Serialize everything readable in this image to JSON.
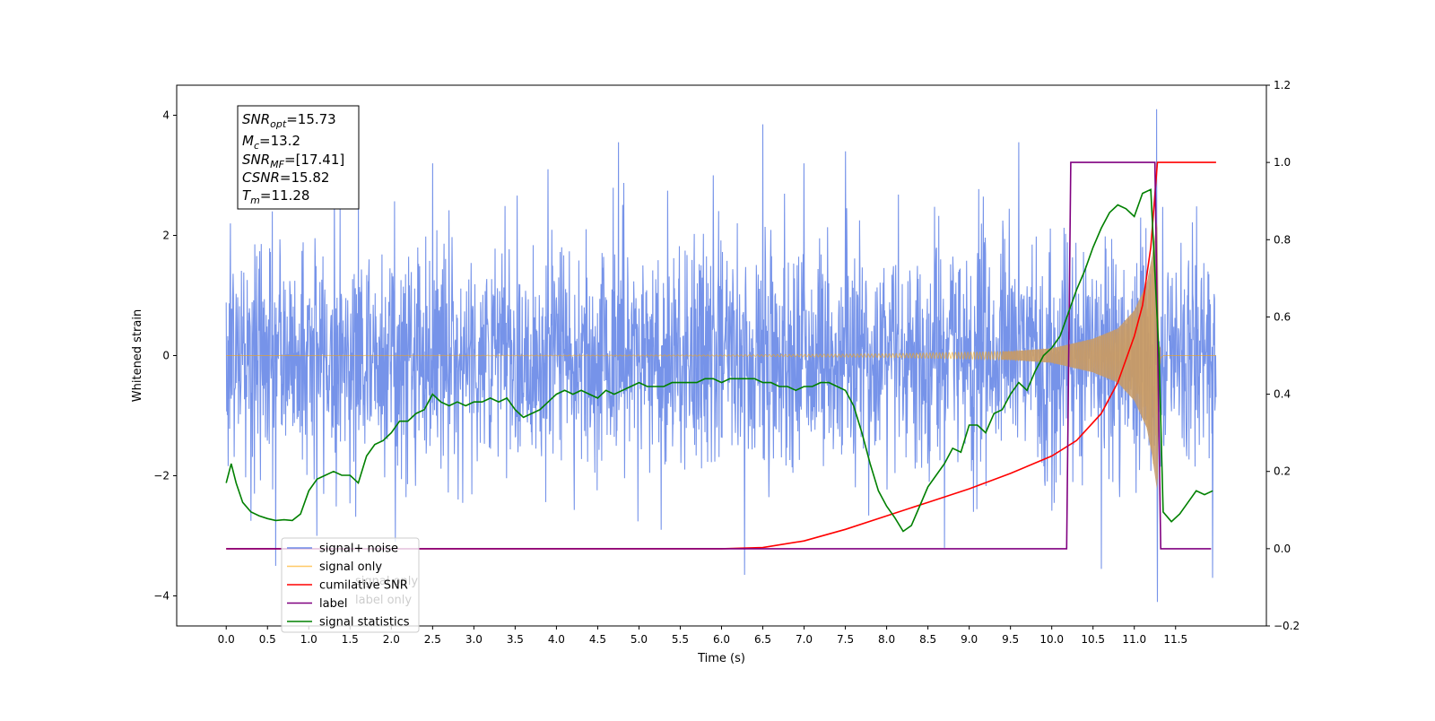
{
  "chart_data": {
    "type": "line",
    "xlabel": "Time (s)",
    "ylabel": "Whitened strain",
    "xlim": [
      -0.6,
      12.6
    ],
    "ylim": [
      -4.5,
      4.5
    ],
    "y2lim": [
      -0.2,
      1.2
    ],
    "x_ticks": [
      "0.0",
      "0.5",
      "1.0",
      "1.5",
      "2.0",
      "2.5",
      "3.0",
      "3.5",
      "4.0",
      "4.5",
      "5.0",
      "5.5",
      "6.0",
      "6.5",
      "7.0",
      "7.5",
      "8.0",
      "8.5",
      "9.0",
      "9.5",
      "10.0",
      "10.5",
      "11.0",
      "11.5"
    ],
    "y_ticks": [
      "4",
      "2",
      "0",
      "−2",
      "−4"
    ],
    "y2_ticks": [
      "1.2",
      "1.0",
      "0.8",
      "0.6",
      "0.4",
      "0.2",
      "0.0",
      "−0.2"
    ],
    "colors": {
      "noise": "#4169e1",
      "signal": "#ffa500",
      "csnr": "#ff0000",
      "label": "#800080",
      "stats": "#008000"
    },
    "annotation": {
      "snr_opt_base": "SNR",
      "snr_opt_sub": "opt",
      "snr_opt_value": "=15.73",
      "mc_base": "M",
      "mc_sub": "c",
      "mc_value": "=13.2",
      "snr_mf_base": "SNR",
      "snr_mf_sub": "MF",
      "snr_mf_value": "=[17.41]",
      "csnr_base": "CSNR",
      "csnr_value": "=15.82",
      "tm_base": "T",
      "tm_sub": "m",
      "tm_value": "=11.28"
    },
    "legend": {
      "placement": "lower-left",
      "entries": [
        "signal+ noise",
        "signal only",
        "cumilative SNR",
        "label",
        "signal statistics"
      ],
      "hidden_behind_legend": [
        "signal only",
        "label only"
      ]
    },
    "series": [
      {
        "name": "signal+ noise",
        "axis": "left",
        "kind": "noise",
        "x_range": [
          0.0,
          11.99
        ],
        "typical_band": [
          -1.6,
          1.6
        ],
        "spikes": [
          {
            "x": 0.05,
            "y": 2.2
          },
          {
            "x": 0.3,
            "y": -2.75
          },
          {
            "x": 0.6,
            "y": -3.5
          },
          {
            "x": 2.5,
            "y": 3.2
          },
          {
            "x": 1.1,
            "y": -3.0
          },
          {
            "x": 2.05,
            "y": -3.1
          },
          {
            "x": 4.75,
            "y": 3.55
          },
          {
            "x": 6.28,
            "y": -3.65
          },
          {
            "x": 6.5,
            "y": 3.85
          },
          {
            "x": 7.5,
            "y": 3.4
          },
          {
            "x": 8.7,
            "y": -3.2
          },
          {
            "x": 9.6,
            "y": 3.55
          },
          {
            "x": 10.6,
            "y": -3.55
          },
          {
            "x": 11.27,
            "y": 4.1
          },
          {
            "x": 11.28,
            "y": -4.1
          },
          {
            "x": 11.95,
            "y": -3.7
          },
          {
            "x": 7.0,
            "y": 3.2
          },
          {
            "x": 3.9,
            "y": 3.1
          },
          {
            "x": 1.6,
            "y": 2.6
          },
          {
            "x": 5.9,
            "y": 3.0
          },
          {
            "x": 9.05,
            "y": -2.6
          }
        ]
      },
      {
        "name": "signal only",
        "axis": "left",
        "kind": "chirp",
        "x_range": [
          0.0,
          11.99
        ],
        "merger_time": 11.28,
        "envelope_points": [
          [
            0.0,
            0.0
          ],
          [
            6.0,
            0.01
          ],
          [
            8.0,
            0.03
          ],
          [
            9.5,
            0.07
          ],
          [
            10.0,
            0.12
          ],
          [
            10.5,
            0.28
          ],
          [
            10.8,
            0.45
          ],
          [
            11.0,
            0.75
          ],
          [
            11.15,
            1.2
          ],
          [
            11.22,
            1.7
          ],
          [
            11.28,
            2.3
          ],
          [
            11.3,
            0.2
          ],
          [
            11.35,
            0.0
          ],
          [
            11.99,
            0.0
          ]
        ]
      },
      {
        "name": "cumilative SNR",
        "axis": "right",
        "points": [
          [
            0.0,
            0.0
          ],
          [
            6.0,
            0.0
          ],
          [
            6.5,
            0.003
          ],
          [
            7.0,
            0.02
          ],
          [
            7.5,
            0.05
          ],
          [
            8.0,
            0.085
          ],
          [
            8.5,
            0.12
          ],
          [
            9.0,
            0.155
          ],
          [
            9.5,
            0.195
          ],
          [
            10.0,
            0.24
          ],
          [
            10.3,
            0.28
          ],
          [
            10.6,
            0.35
          ],
          [
            10.8,
            0.43
          ],
          [
            11.0,
            0.55
          ],
          [
            11.1,
            0.63
          ],
          [
            11.2,
            0.78
          ],
          [
            11.28,
            1.0
          ],
          [
            11.99,
            1.0
          ]
        ]
      },
      {
        "name": "label",
        "axis": "right",
        "points": [
          [
            0.0,
            0.0
          ],
          [
            10.18,
            0.0
          ],
          [
            10.23,
            1.0
          ],
          [
            11.25,
            1.0
          ],
          [
            11.32,
            0.0
          ],
          [
            11.93,
            0.0
          ]
        ]
      },
      {
        "name": "signal statistics",
        "axis": "right",
        "points": [
          [
            0.0,
            0.17
          ],
          [
            0.06,
            0.22
          ],
          [
            0.12,
            0.17
          ],
          [
            0.2,
            0.12
          ],
          [
            0.3,
            0.095
          ],
          [
            0.4,
            0.085
          ],
          [
            0.5,
            0.078
          ],
          [
            0.6,
            0.073
          ],
          [
            0.7,
            0.075
          ],
          [
            0.8,
            0.073
          ],
          [
            0.9,
            0.09
          ],
          [
            1.0,
            0.15
          ],
          [
            1.1,
            0.18
          ],
          [
            1.2,
            0.19
          ],
          [
            1.3,
            0.2
          ],
          [
            1.4,
            0.19
          ],
          [
            1.5,
            0.19
          ],
          [
            1.6,
            0.17
          ],
          [
            1.7,
            0.24
          ],
          [
            1.8,
            0.27
          ],
          [
            1.9,
            0.28
          ],
          [
            2.0,
            0.3
          ],
          [
            2.1,
            0.33
          ],
          [
            2.2,
            0.33
          ],
          [
            2.3,
            0.35
          ],
          [
            2.4,
            0.36
          ],
          [
            2.5,
            0.4
          ],
          [
            2.6,
            0.38
          ],
          [
            2.7,
            0.37
          ],
          [
            2.8,
            0.38
          ],
          [
            2.9,
            0.37
          ],
          [
            3.0,
            0.38
          ],
          [
            3.1,
            0.38
          ],
          [
            3.2,
            0.39
          ],
          [
            3.3,
            0.38
          ],
          [
            3.4,
            0.39
          ],
          [
            3.5,
            0.36
          ],
          [
            3.6,
            0.34
          ],
          [
            3.7,
            0.35
          ],
          [
            3.8,
            0.36
          ],
          [
            3.9,
            0.38
          ],
          [
            4.0,
            0.4
          ],
          [
            4.1,
            0.41
          ],
          [
            4.2,
            0.4
          ],
          [
            4.3,
            0.41
          ],
          [
            4.4,
            0.4
          ],
          [
            4.5,
            0.39
          ],
          [
            4.6,
            0.41
          ],
          [
            4.7,
            0.4
          ],
          [
            4.8,
            0.41
          ],
          [
            4.9,
            0.42
          ],
          [
            5.0,
            0.43
          ],
          [
            5.1,
            0.42
          ],
          [
            5.2,
            0.42
          ],
          [
            5.3,
            0.42
          ],
          [
            5.4,
            0.43
          ],
          [
            5.5,
            0.43
          ],
          [
            5.6,
            0.43
          ],
          [
            5.7,
            0.43
          ],
          [
            5.8,
            0.44
          ],
          [
            5.9,
            0.44
          ],
          [
            6.0,
            0.43
          ],
          [
            6.1,
            0.44
          ],
          [
            6.2,
            0.44
          ],
          [
            6.3,
            0.44
          ],
          [
            6.4,
            0.44
          ],
          [
            6.5,
            0.43
          ],
          [
            6.6,
            0.43
          ],
          [
            6.7,
            0.42
          ],
          [
            6.8,
            0.42
          ],
          [
            6.9,
            0.41
          ],
          [
            7.0,
            0.42
          ],
          [
            7.1,
            0.42
          ],
          [
            7.2,
            0.43
          ],
          [
            7.3,
            0.43
          ],
          [
            7.4,
            0.42
          ],
          [
            7.5,
            0.41
          ],
          [
            7.6,
            0.37
          ],
          [
            7.7,
            0.3
          ],
          [
            7.8,
            0.22
          ],
          [
            7.9,
            0.15
          ],
          [
            8.0,
            0.11
          ],
          [
            8.1,
            0.08
          ],
          [
            8.2,
            0.045
          ],
          [
            8.3,
            0.06
          ],
          [
            8.4,
            0.11
          ],
          [
            8.5,
            0.16
          ],
          [
            8.6,
            0.19
          ],
          [
            8.7,
            0.22
          ],
          [
            8.8,
            0.26
          ],
          [
            8.9,
            0.25
          ],
          [
            9.0,
            0.32
          ],
          [
            9.1,
            0.32
          ],
          [
            9.2,
            0.3
          ],
          [
            9.3,
            0.35
          ],
          [
            9.4,
            0.36
          ],
          [
            9.5,
            0.4
          ],
          [
            9.6,
            0.43
          ],
          [
            9.7,
            0.41
          ],
          [
            9.8,
            0.46
          ],
          [
            9.9,
            0.5
          ],
          [
            10.0,
            0.52
          ],
          [
            10.1,
            0.55
          ],
          [
            10.2,
            0.61
          ],
          [
            10.3,
            0.67
          ],
          [
            10.4,
            0.72
          ],
          [
            10.5,
            0.78
          ],
          [
            10.6,
            0.83
          ],
          [
            10.7,
            0.87
          ],
          [
            10.8,
            0.89
          ],
          [
            10.9,
            0.88
          ],
          [
            11.0,
            0.86
          ],
          [
            11.1,
            0.92
          ],
          [
            11.2,
            0.93
          ],
          [
            11.3,
            0.5
          ],
          [
            11.35,
            0.095
          ],
          [
            11.45,
            0.07
          ],
          [
            11.55,
            0.09
          ],
          [
            11.65,
            0.12
          ],
          [
            11.75,
            0.15
          ],
          [
            11.85,
            0.14
          ],
          [
            11.95,
            0.15
          ]
        ]
      }
    ]
  }
}
